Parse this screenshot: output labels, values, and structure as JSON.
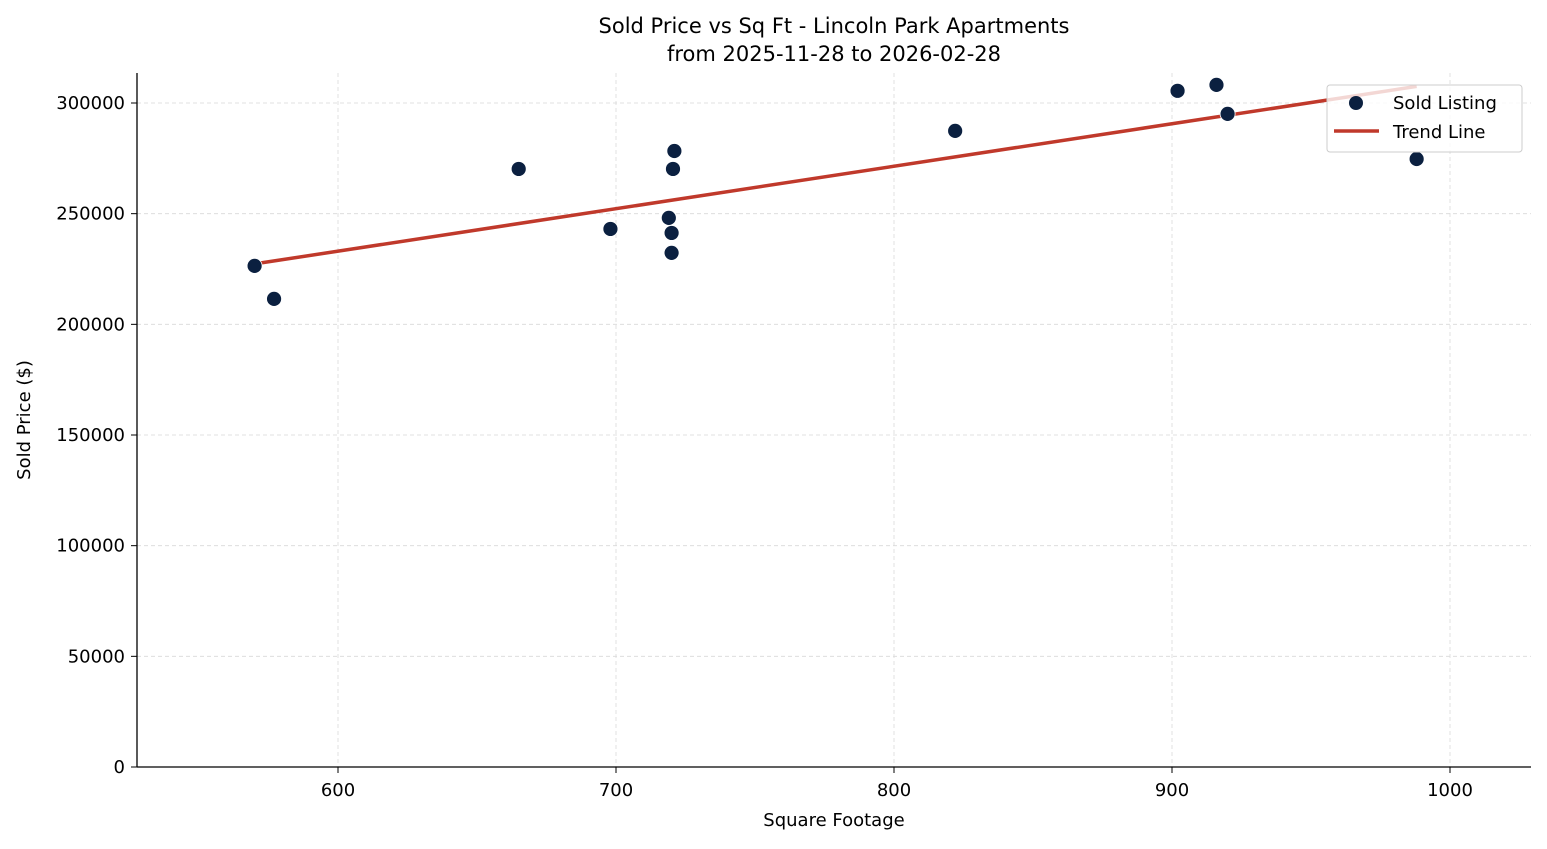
{
  "chart_data": {
    "type": "scatter",
    "title": "Sold Price vs Sq Ft - Lincoln Park Apartments",
    "subtitle": "from 2025-11-28 to 2026-02-28",
    "xlabel": "Square Footage",
    "ylabel": "Sold Price ($)",
    "xlim": [
      528,
      1029
    ],
    "ylim": [
      0,
      313500
    ],
    "xticks": [
      600,
      700,
      800,
      900,
      1000
    ],
    "yticks": [
      0,
      50000,
      100000,
      150000,
      200000,
      250000,
      300000
    ],
    "grid": true,
    "legend_position": "top-right",
    "series": [
      {
        "name": "Sold Listing",
        "type": "scatter",
        "color": "#0b2040",
        "points": [
          {
            "x": 570,
            "y": 226400
          },
          {
            "x": 577,
            "y": 211500
          },
          {
            "x": 665,
            "y": 270200
          },
          {
            "x": 698,
            "y": 243100
          },
          {
            "x": 719,
            "y": 248100
          },
          {
            "x": 720,
            "y": 241300
          },
          {
            "x": 720,
            "y": 232300
          },
          {
            "x": 720.5,
            "y": 270200
          },
          {
            "x": 721,
            "y": 278300
          },
          {
            "x": 822,
            "y": 287400
          },
          {
            "x": 902,
            "y": 305500
          },
          {
            "x": 916,
            "y": 308200
          },
          {
            "x": 920,
            "y": 295100
          },
          {
            "x": 988,
            "y": 274700
          }
        ]
      },
      {
        "name": "Trend Line",
        "type": "line",
        "color": "#c0392b",
        "points": [
          {
            "x": 570,
            "y": 227300
          },
          {
            "x": 988,
            "y": 307500
          }
        ]
      }
    ]
  }
}
